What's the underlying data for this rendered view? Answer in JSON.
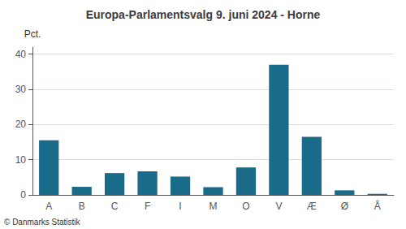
{
  "chart_data": {
    "type": "bar",
    "title": "Europa-Parlamentsvalg 9. juni 2024 - Horne",
    "categories": [
      "A",
      "B",
      "C",
      "F",
      "I",
      "M",
      "O",
      "V",
      "Æ",
      "Ø",
      "Å"
    ],
    "values": [
      15.5,
      2.3,
      6.2,
      6.7,
      5.2,
      2.2,
      7.8,
      37.0,
      16.5,
      1.3,
      0.3
    ],
    "color": "#1a6b8a",
    "ylabel": "Pct.",
    "annotation": "© Danmarks Statistik",
    "ylim": [
      0,
      42
    ],
    "yticks": [
      0,
      10,
      20,
      30,
      40
    ],
    "grid": true
  }
}
